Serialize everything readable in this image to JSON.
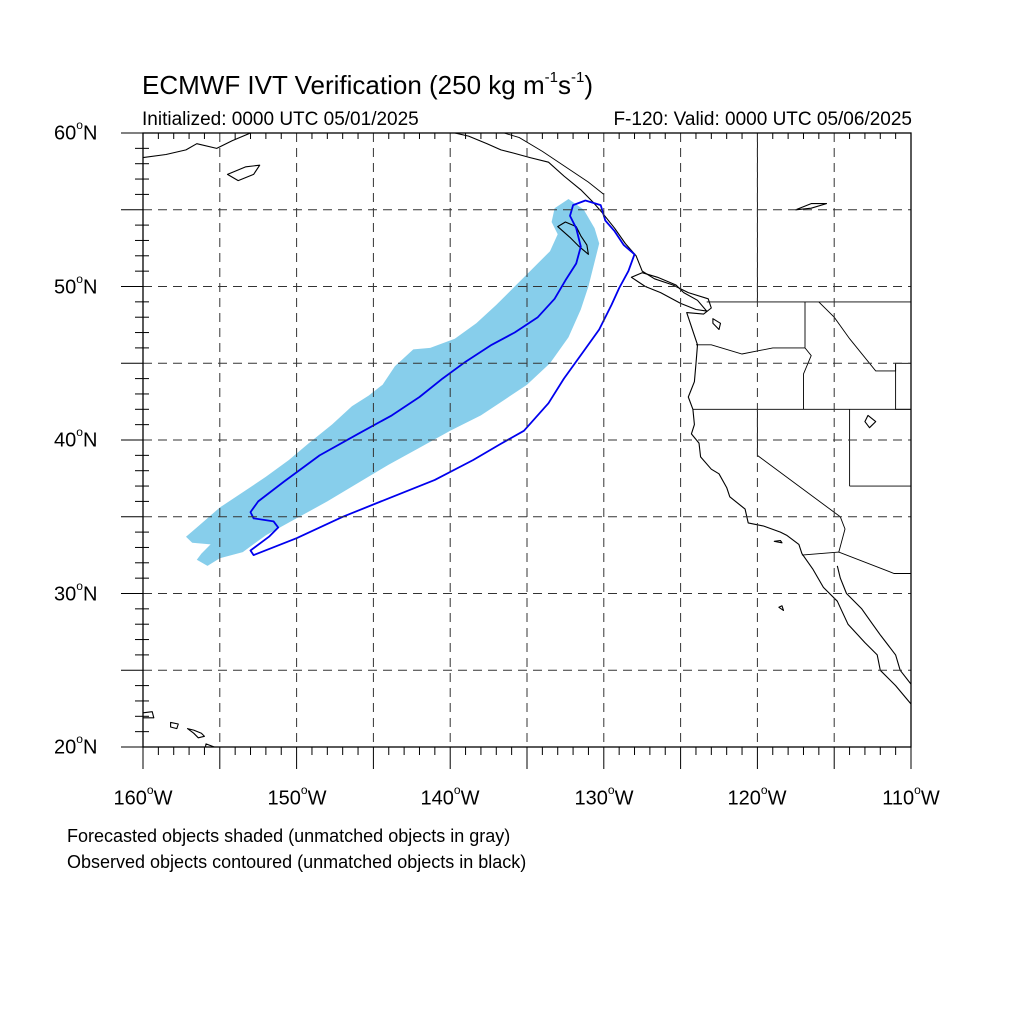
{
  "title": {
    "main": "ECMWF IVT Verification (250 kg m",
    "exp1": "-1",
    "mid": "s",
    "exp2": "-1",
    "end": ")"
  },
  "subtitle": {
    "initialized": "Initialized: 0000 UTC 05/01/2025",
    "valid": "F-120: Valid: 0000 UTC 05/06/2025"
  },
  "map_extent": {
    "lon_min": -160,
    "lon_max": -110,
    "lat_min": 20,
    "lat_max": 60
  },
  "lat_labels": [
    {
      "value": "60",
      "deg": "o",
      "hemi": "N"
    },
    {
      "value": "50",
      "deg": "o",
      "hemi": "N"
    },
    {
      "value": "40",
      "deg": "o",
      "hemi": "N"
    },
    {
      "value": "30",
      "deg": "o",
      "hemi": "N"
    },
    {
      "value": "20",
      "deg": "o",
      "hemi": "N"
    }
  ],
  "lon_labels": [
    {
      "value": "160",
      "deg": "o",
      "hemi": "W"
    },
    {
      "value": "150",
      "deg": "o",
      "hemi": "W"
    },
    {
      "value": "140",
      "deg": "o",
      "hemi": "W"
    },
    {
      "value": "130",
      "deg": "o",
      "hemi": "W"
    },
    {
      "value": "120",
      "deg": "o",
      "hemi": "W"
    },
    {
      "value": "110",
      "deg": "o",
      "hemi": "W"
    }
  ],
  "notes": [
    "Forecasted objects shaded (unmatched objects in gray)",
    "Observed objects contoured (unmatched objects in black)"
  ],
  "colors": {
    "forecast_fill": "#87ceeb",
    "observed_contour": "#0000ee",
    "coastline": "#000000",
    "grid": "#333333"
  },
  "forecast_object": [
    [
      -155.0,
      32.3
    ],
    [
      -153.5,
      32.7
    ],
    [
      -152.0,
      33.8
    ],
    [
      -150.0,
      34.9
    ],
    [
      -148.0,
      36.0
    ],
    [
      -146.0,
      37.2
    ],
    [
      -144.0,
      38.4
    ],
    [
      -142.0,
      39.5
    ],
    [
      -140.0,
      40.6
    ],
    [
      -138.0,
      41.6
    ],
    [
      -136.5,
      42.6
    ],
    [
      -135.0,
      43.6
    ],
    [
      -133.5,
      45.0
    ],
    [
      -132.3,
      46.7
    ],
    [
      -131.5,
      48.5
    ],
    [
      -131.0,
      50.0
    ],
    [
      -130.6,
      51.6
    ],
    [
      -130.3,
      52.8
    ],
    [
      -130.6,
      53.8
    ],
    [
      -131.3,
      55.0
    ],
    [
      -132.3,
      55.7
    ],
    [
      -133.2,
      55.1
    ],
    [
      -133.4,
      54.2
    ],
    [
      -133.0,
      53.4
    ],
    [
      -133.5,
      52.3
    ],
    [
      -134.6,
      51.2
    ],
    [
      -135.8,
      50.0
    ],
    [
      -137.0,
      48.8
    ],
    [
      -138.3,
      47.6
    ],
    [
      -139.7,
      46.6
    ],
    [
      -141.3,
      46.0
    ],
    [
      -142.4,
      45.9
    ],
    [
      -143.6,
      44.8
    ],
    [
      -144.4,
      43.6
    ],
    [
      -145.3,
      42.9
    ],
    [
      -146.4,
      42.2
    ],
    [
      -147.7,
      41.0
    ],
    [
      -149.2,
      39.8
    ],
    [
      -150.5,
      38.7
    ],
    [
      -152.0,
      37.6
    ],
    [
      -153.5,
      36.6
    ],
    [
      -155.0,
      35.6
    ],
    [
      -156.5,
      34.3
    ],
    [
      -157.2,
      33.7
    ],
    [
      -156.8,
      33.3
    ],
    [
      -155.6,
      33.2
    ],
    [
      -156.2,
      32.6
    ],
    [
      -156.5,
      32.2
    ],
    [
      -155.8,
      31.8
    ]
  ],
  "observed_object": [
    [
      -152.8,
      34.9
    ],
    [
      -151.5,
      34.7
    ],
    [
      -151.2,
      34.3
    ],
    [
      -151.8,
      33.7
    ],
    [
      -153.0,
      32.8
    ],
    [
      -152.8,
      32.5
    ],
    [
      -150.0,
      33.6
    ],
    [
      -147.0,
      35.0
    ],
    [
      -144.0,
      36.2
    ],
    [
      -141.0,
      37.4
    ],
    [
      -138.5,
      38.7
    ],
    [
      -136.8,
      39.7
    ],
    [
      -135.2,
      40.6
    ],
    [
      -133.6,
      42.4
    ],
    [
      -132.6,
      44.0
    ],
    [
      -131.3,
      45.8
    ],
    [
      -130.3,
      47.2
    ],
    [
      -129.5,
      48.8
    ],
    [
      -129.0,
      49.9
    ],
    [
      -128.4,
      51.0
    ],
    [
      -128.0,
      52.1
    ],
    [
      -128.7,
      52.7
    ],
    [
      -129.3,
      53.6
    ],
    [
      -129.9,
      54.3
    ],
    [
      -130.2,
      55.3
    ],
    [
      -131.2,
      55.6
    ],
    [
      -132.0,
      55.3
    ],
    [
      -132.2,
      54.6
    ],
    [
      -131.8,
      53.8
    ],
    [
      -131.5,
      52.6
    ],
    [
      -131.8,
      51.5
    ],
    [
      -132.5,
      50.4
    ],
    [
      -133.2,
      49.2
    ],
    [
      -134.3,
      48.0
    ],
    [
      -135.8,
      47.0
    ],
    [
      -137.3,
      46.2
    ],
    [
      -139.0,
      45.1
    ],
    [
      -140.5,
      44.0
    ],
    [
      -142.0,
      42.8
    ],
    [
      -143.8,
      41.6
    ],
    [
      -146.0,
      40.4
    ],
    [
      -148.5,
      39.0
    ],
    [
      -150.8,
      37.3
    ],
    [
      -152.5,
      36.0
    ],
    [
      -153.0,
      35.3
    ]
  ],
  "coastline_na": [
    [
      -110.0,
      22.8
    ],
    [
      -111.0,
      24.0
    ],
    [
      -112.0,
      25.0
    ],
    [
      -112.2,
      26.0
    ],
    [
      -113.0,
      26.8
    ],
    [
      -114.1,
      28.0
    ],
    [
      -114.8,
      29.5
    ],
    [
      -115.7,
      30.4
    ],
    [
      -116.4,
      31.6
    ],
    [
      -117.1,
      32.6
    ],
    [
      -117.3,
      33.2
    ],
    [
      -118.1,
      33.8
    ],
    [
      -118.5,
      34.0
    ],
    [
      -119.6,
      34.4
    ],
    [
      -120.6,
      34.6
    ],
    [
      -120.8,
      35.5
    ],
    [
      -121.8,
      36.3
    ],
    [
      -122.0,
      36.9
    ],
    [
      -122.5,
      37.8
    ],
    [
      -123.0,
      38.1
    ],
    [
      -123.7,
      38.9
    ],
    [
      -123.8,
      39.8
    ],
    [
      -124.3,
      40.4
    ],
    [
      -124.1,
      41.0
    ],
    [
      -124.2,
      42.0
    ],
    [
      -124.5,
      42.8
    ],
    [
      -124.1,
      43.8
    ],
    [
      -124.0,
      45.0
    ],
    [
      -123.9,
      46.2
    ],
    [
      -124.1,
      46.8
    ],
    [
      -124.6,
      48.3
    ],
    [
      -123.5,
      48.2
    ],
    [
      -123.0,
      48.6
    ],
    [
      -123.2,
      49.2
    ],
    [
      -124.5,
      49.6
    ],
    [
      -125.5,
      50.1
    ],
    [
      -126.7,
      50.5
    ],
    [
      -127.5,
      51.0
    ],
    [
      -127.9,
      52.0
    ],
    [
      -128.6,
      52.8
    ],
    [
      -129.3,
      53.8
    ],
    [
      -130.1,
      54.8
    ],
    [
      -130.7,
      55.5
    ],
    [
      -131.5,
      56.3
    ],
    [
      -132.6,
      57.2
    ],
    [
      -133.6,
      58.1
    ],
    [
      -134.8,
      58.4
    ],
    [
      -135.9,
      58.7
    ],
    [
      -136.7,
      58.9
    ],
    [
      -137.6,
      59.3
    ],
    [
      -138.8,
      59.8
    ],
    [
      -139.7,
      60.0
    ]
  ],
  "coastline_vancouver_island": [
    [
      -123.3,
      48.4
    ],
    [
      -124.0,
      48.5
    ],
    [
      -125.0,
      48.9
    ],
    [
      -126.3,
      49.6
    ],
    [
      -127.3,
      50.0
    ],
    [
      -128.2,
      50.6
    ],
    [
      -127.5,
      50.9
    ],
    [
      -126.5,
      50.6
    ],
    [
      -125.3,
      50.1
    ],
    [
      -124.8,
      49.6
    ],
    [
      -123.9,
      49.1
    ],
    [
      -123.3,
      48.4
    ]
  ],
  "coastline_haida_gwaii": [
    [
      -131.0,
      52.1
    ],
    [
      -131.6,
      52.6
    ],
    [
      -132.2,
      53.2
    ],
    [
      -133.0,
      53.9
    ],
    [
      -132.5,
      54.2
    ],
    [
      -131.8,
      53.9
    ],
    [
      -131.5,
      53.3
    ],
    [
      -131.1,
      52.7
    ],
    [
      -131.0,
      52.1
    ]
  ],
  "coastline_alaska_sw": [
    [
      -160.0,
      58.4
    ],
    [
      -158.5,
      58.6
    ],
    [
      -157.2,
      58.9
    ],
    [
      -156.5,
      59.3
    ],
    [
      -155.2,
      59.0
    ],
    [
      -154.2,
      59.5
    ],
    [
      -153.0,
      60.0
    ]
  ],
  "coastline_kodiak": [
    [
      -154.5,
      57.3
    ],
    [
      -153.3,
      57.8
    ],
    [
      -152.4,
      57.9
    ],
    [
      -152.8,
      57.3
    ],
    [
      -153.8,
      56.9
    ],
    [
      -154.5,
      57.3
    ]
  ],
  "coastline_hawaii": [
    [
      [
        -160.2,
        22.2
      ],
      [
        -159.4,
        22.3
      ],
      [
        -159.3,
        21.9
      ],
      [
        -160.0,
        21.9
      ],
      [
        -160.2,
        22.2
      ]
    ],
    [
      [
        -158.2,
        21.6
      ],
      [
        -157.7,
        21.5
      ],
      [
        -157.8,
        21.2
      ],
      [
        -158.2,
        21.3
      ],
      [
        -158.2,
        21.6
      ]
    ],
    [
      [
        -157.1,
        21.2
      ],
      [
        -156.7,
        21.1
      ],
      [
        -156.2,
        20.9
      ],
      [
        -156.0,
        20.7
      ],
      [
        -156.4,
        20.6
      ],
      [
        -156.7,
        20.9
      ],
      [
        -157.1,
        21.2
      ]
    ],
    [
      [
        -155.9,
        20.2
      ],
      [
        -155.1,
        19.9
      ],
      [
        -154.8,
        19.5
      ],
      [
        -155.5,
        19.0
      ],
      [
        -156.0,
        19.6
      ],
      [
        -155.9,
        20.2
      ]
    ]
  ],
  "boundaries": [
    [
      [
        -123.3,
        49.0
      ],
      [
        -110.0,
        49.0
      ]
    ],
    [
      [
        -124.2,
        42.0
      ],
      [
        -110.0,
        42.0
      ]
    ],
    [
      [
        -124.0,
        46.2
      ],
      [
        -123.0,
        46.2
      ],
      [
        -121.0,
        45.6
      ],
      [
        -119.0,
        46.0
      ],
      [
        -116.9,
        46.0
      ]
    ],
    [
      [
        -116.9,
        46.0
      ],
      [
        -116.9,
        49.0
      ]
    ],
    [
      [
        -117.0,
        42.0
      ],
      [
        -117.0,
        44.3
      ],
      [
        -116.5,
        45.5
      ],
      [
        -116.9,
        46.0
      ]
    ],
    [
      [
        -120.0,
        42.0
      ],
      [
        -120.0,
        39.0
      ],
      [
        -114.6,
        35.0
      ],
      [
        -114.3,
        34.2
      ],
      [
        -114.7,
        32.7
      ]
    ],
    [
      [
        -117.1,
        32.5
      ],
      [
        -114.7,
        32.7
      ],
      [
        -111.1,
        31.3
      ],
      [
        -110.0,
        31.3
      ]
    ],
    [
      [
        -114.0,
        42.0
      ],
      [
        -114.0,
        37.0
      ]
    ],
    [
      [
        -114.0,
        37.0
      ],
      [
        -110.0,
        37.0
      ]
    ],
    [
      [
        -111.0,
        45.0
      ],
      [
        -111.0,
        42.0
      ],
      [
        -110.0,
        42.0
      ]
    ],
    [
      [
        -116.0,
        49.0
      ],
      [
        -115.0,
        48.0
      ],
      [
        -114.0,
        46.6
      ],
      [
        -112.3,
        44.5
      ],
      [
        -111.0,
        44.5
      ],
      [
        -111.0,
        45.0
      ],
      [
        -110.0,
        45.0
      ]
    ],
    [
      [
        -130.0,
        56.0
      ],
      [
        -131.0,
        56.8
      ],
      [
        -132.5,
        57.8
      ],
      [
        -134.0,
        58.8
      ],
      [
        -135.5,
        59.7
      ],
      [
        -136.5,
        60.0
      ]
    ],
    [
      [
        -120.0,
        49.0
      ],
      [
        -120.0,
        60.0
      ]
    ]
  ],
  "inland_water": [
    [
      [
        -112.8,
        41.6
      ],
      [
        -112.3,
        41.2
      ],
      [
        -112.7,
        40.8
      ],
      [
        -113.0,
        41.2
      ],
      [
        -112.8,
        41.6
      ]
    ],
    [
      [
        -122.9,
        47.9
      ],
      [
        -122.4,
        47.6
      ],
      [
        -122.5,
        47.2
      ],
      [
        -122.9,
        47.6
      ],
      [
        -122.9,
        47.9
      ]
    ],
    [
      [
        -117.5,
        55.0
      ],
      [
        -116.5,
        55.4
      ],
      [
        -115.5,
        55.4
      ],
      [
        -116.5,
        55.1
      ],
      [
        -117.5,
        55.0
      ]
    ],
    [
      [
        -118.9,
        33.4
      ],
      [
        -118.4,
        33.3
      ],
      [
        -118.5,
        33.45
      ],
      [
        -118.9,
        33.4
      ]
    ],
    [
      [
        -118.6,
        29.1
      ],
      [
        -118.3,
        28.9
      ],
      [
        -118.4,
        29.2
      ],
      [
        -118.6,
        29.1
      ]
    ]
  ],
  "coastline_baja_inner": [
    [
      -114.8,
      31.8
    ],
    [
      -114.6,
      31.0
    ],
    [
      -114.2,
      30.0
    ],
    [
      -113.2,
      29.0
    ],
    [
      -112.5,
      28.0
    ],
    [
      -112.0,
      27.3
    ],
    [
      -111.0,
      26.0
    ],
    [
      -110.7,
      25.0
    ],
    [
      -110.0,
      24.1
    ]
  ]
}
